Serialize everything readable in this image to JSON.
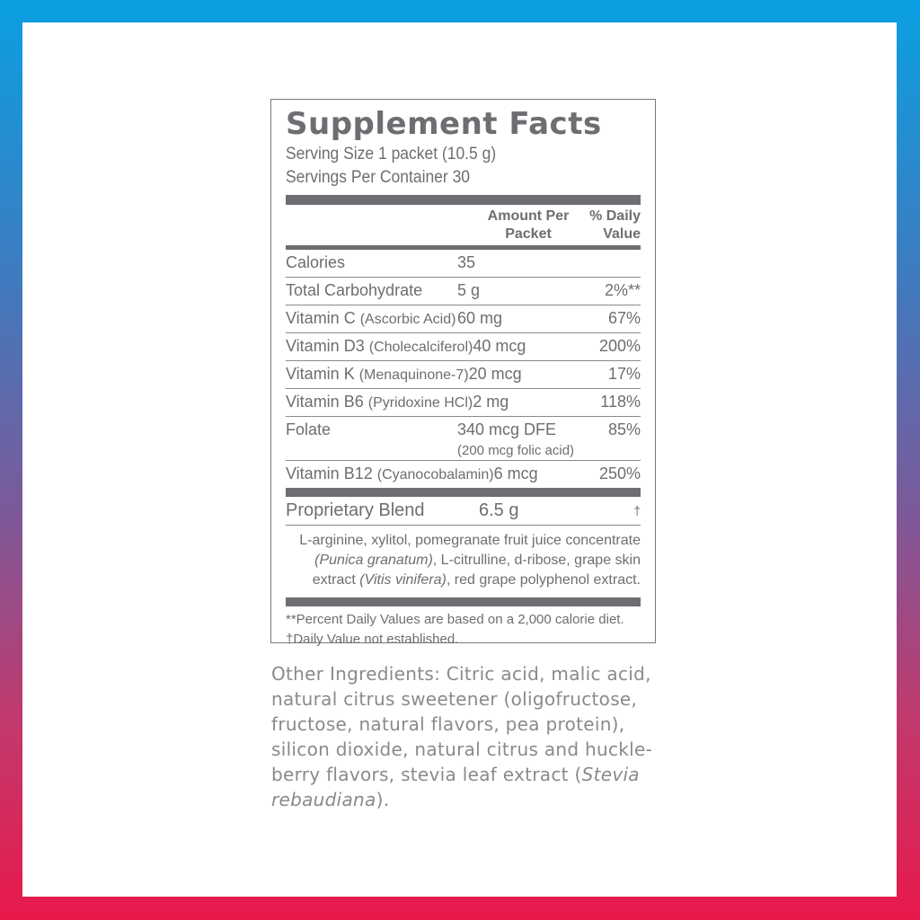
{
  "colors": {
    "border_top": "#0aa0e2",
    "border_bottom": "#e8194a",
    "label_text": "#6d6e71"
  },
  "title": "Supplement Facts",
  "serving_size": "Serving Size 1 packet (10.5 g)",
  "servings_per_container": "Servings Per Container 30",
  "header": {
    "amount_line1": "Amount Per",
    "amount_line2": "Packet",
    "dv_line1": "% Daily",
    "dv_line2": "Value"
  },
  "rows": [
    {
      "name": "Calories",
      "detail": "",
      "amount": "35",
      "dv": ""
    },
    {
      "name": "Total Carbohydrate",
      "detail": "",
      "amount": "5 g",
      "dv": "2%**"
    },
    {
      "name": "Vitamin C",
      "detail": "(Ascorbic Acid)",
      "amount": "60 mg",
      "dv": "67%"
    },
    {
      "name": "Vitamin D3",
      "detail": "(Cholecalciferol)",
      "amount": "40 mcg",
      "dv": "200%"
    },
    {
      "name": "Vitamin K",
      "detail": "(Menaquinone-7)",
      "amount": "20 mcg",
      "dv": "17%"
    },
    {
      "name": "Vitamin B6",
      "detail": "(Pyridoxine HCl)",
      "amount": "2 mg",
      "dv": "118%"
    },
    {
      "name": "Folate",
      "detail": "",
      "amount": "340 mcg DFE",
      "amount_sub": "(200 mcg folic acid)",
      "dv": "85%"
    },
    {
      "name": "Vitamin B12",
      "detail": "(Cyanocobalamin)",
      "amount": "6 mcg",
      "dv": "250%"
    }
  ],
  "blend": {
    "name": "Proprietary Blend",
    "amount": "6.5 g",
    "dv": "†",
    "ingredients": [
      {
        "text": "L-arginine, xylitol, pomegranate fruit juice concentrate ",
        "italic": false
      },
      {
        "text": "(Punica granatum)",
        "italic": true
      },
      {
        "text": ", L-citrulline, d-ribose, grape skin extract ",
        "italic": false
      },
      {
        "text": "(Vitis vinifera)",
        "italic": true
      },
      {
        "text": ", red grape polyphenol extract.",
        "italic": false
      }
    ]
  },
  "footnotes": [
    "**Percent Daily Values are based on a 2,000 calorie diet.",
    "†Daily Value not established."
  ],
  "other_ingredients": {
    "text": "Other Ingredients: Citric acid, malic acid, natural citrus sweetener (oligofructose, fructose, natural flavors, pea protein), silicon dioxide, natural citrus and huckle-berry flavors, stevia leaf extract (",
    "italic": "Stevia rebaudiana",
    "end": ")."
  }
}
